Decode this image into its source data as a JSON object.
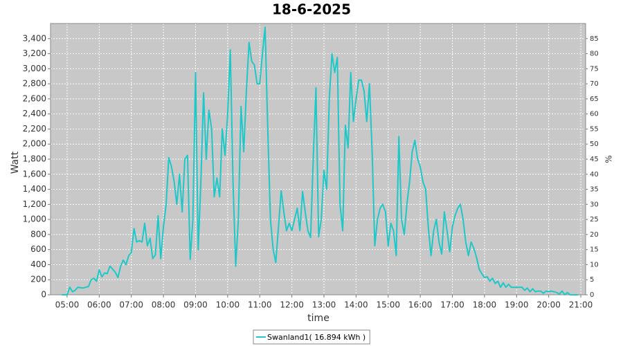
{
  "chart_data": {
    "type": "line",
    "title": "18-6-2025",
    "x_label": "time",
    "y_label": "Watt",
    "y2_label": "%",
    "x": [
      "04:50",
      "04:55",
      "05:00",
      "05:05",
      "05:10",
      "05:15",
      "05:20",
      "05:25",
      "05:30",
      "05:35",
      "05:40",
      "05:45",
      "05:50",
      "05:55",
      "06:00",
      "06:05",
      "06:10",
      "06:15",
      "06:20",
      "06:25",
      "06:30",
      "06:35",
      "06:40",
      "06:45",
      "06:50",
      "06:55",
      "07:00",
      "07:05",
      "07:10",
      "07:15",
      "07:20",
      "07:25",
      "07:30",
      "07:35",
      "07:40",
      "07:45",
      "07:50",
      "07:55",
      "08:00",
      "08:05",
      "08:10",
      "08:15",
      "08:20",
      "08:25",
      "08:30",
      "08:35",
      "08:40",
      "08:45",
      "08:50",
      "08:55",
      "09:00",
      "09:05",
      "09:10",
      "09:15",
      "09:20",
      "09:25",
      "09:30",
      "09:35",
      "09:40",
      "09:45",
      "09:50",
      "09:55",
      "10:00",
      "10:05",
      "10:10",
      "10:15",
      "10:20",
      "10:25",
      "10:30",
      "10:35",
      "10:40",
      "10:45",
      "10:50",
      "10:55",
      "11:00",
      "11:05",
      "11:10",
      "11:15",
      "11:20",
      "11:25",
      "11:30",
      "11:35",
      "11:40",
      "11:45",
      "11:50",
      "11:55",
      "12:00",
      "12:05",
      "12:10",
      "12:15",
      "12:20",
      "12:25",
      "12:30",
      "12:35",
      "12:40",
      "12:45",
      "12:50",
      "12:55",
      "13:00",
      "13:05",
      "13:10",
      "13:15",
      "13:20",
      "13:25",
      "13:30",
      "13:35",
      "13:40",
      "13:45",
      "13:50",
      "13:55",
      "14:00",
      "14:05",
      "14:10",
      "14:15",
      "14:20",
      "14:25",
      "14:30",
      "14:35",
      "14:40",
      "14:45",
      "14:50",
      "14:55",
      "15:00",
      "15:05",
      "15:10",
      "15:15",
      "15:20",
      "15:25",
      "15:30",
      "15:35",
      "15:40",
      "15:45",
      "15:50",
      "15:55",
      "16:00",
      "16:05",
      "16:10",
      "16:15",
      "16:20",
      "16:25",
      "16:30",
      "16:35",
      "16:40",
      "16:45",
      "16:50",
      "16:55",
      "17:00",
      "17:05",
      "17:10",
      "17:15",
      "17:20",
      "17:25",
      "17:30",
      "17:35",
      "17:40",
      "17:45",
      "17:50",
      "17:55",
      "18:00",
      "18:05",
      "18:10",
      "18:15",
      "18:20",
      "18:25",
      "18:30",
      "18:35",
      "18:40",
      "18:45",
      "18:50",
      "18:55",
      "19:00",
      "19:05",
      "19:10",
      "19:15",
      "19:20",
      "19:25",
      "19:30",
      "19:35",
      "19:40",
      "19:45",
      "19:50",
      "19:55",
      "20:00",
      "20:05",
      "20:10",
      "20:15",
      "20:20",
      "20:25",
      "20:30",
      "20:35",
      "20:40",
      "20:45",
      "20:50",
      "20:55"
    ],
    "series": [
      {
        "name": "Swanland1( 16.894 kWh )",
        "color": "#1ec8c8",
        "values": [
          0,
          0,
          0,
          100,
          40,
          60,
          100,
          95,
          90,
          100,
          110,
          200,
          220,
          180,
          330,
          240,
          290,
          280,
          380,
          340,
          300,
          230,
          380,
          460,
          400,
          520,
          560,
          880,
          700,
          720,
          700,
          950,
          650,
          750,
          480,
          530,
          1050,
          480,
          900,
          1200,
          1820,
          1700,
          1500,
          1200,
          1600,
          1100,
          1800,
          1850,
          470,
          1000,
          2950,
          600,
          1500,
          2680,
          1800,
          2450,
          2200,
          1300,
          1550,
          1300,
          2200,
          1850,
          2400,
          3250,
          1500,
          380,
          1000,
          2500,
          1900,
          2700,
          3350,
          3100,
          3050,
          2800,
          2800,
          3200,
          3550,
          2200,
          1000,
          600,
          430,
          900,
          1380,
          1100,
          850,
          950,
          850,
          1000,
          1150,
          850,
          1370,
          1100,
          850,
          760,
          1800,
          2750,
          770,
          1000,
          1650,
          1400,
          2600,
          3200,
          2950,
          3150,
          1200,
          850,
          2250,
          1950,
          2950,
          2300,
          2600,
          2850,
          2850,
          2700,
          2300,
          2800,
          1900,
          650,
          1000,
          1150,
          1200,
          1100,
          650,
          950,
          850,
          520,
          2100,
          1000,
          800,
          1200,
          1500,
          1900,
          2050,
          1800,
          1700,
          1500,
          1400,
          900,
          520,
          850,
          1000,
          700,
          540,
          1100,
          850,
          570,
          900,
          1050,
          1150,
          1200,
          1000,
          700,
          520,
          700,
          620,
          500,
          340,
          280,
          230,
          240,
          180,
          220,
          150,
          180,
          100,
          160,
          100,
          140,
          100,
          100,
          100,
          100,
          100,
          60,
          90,
          40,
          80,
          40,
          50,
          50,
          20,
          50,
          40,
          50,
          40,
          30,
          10,
          50,
          0,
          30,
          0,
          0,
          0,
          0
        ]
      }
    ],
    "xlim": [
      "04:29",
      "21:09"
    ],
    "xticks": [
      "05:00",
      "06:00",
      "07:00",
      "08:00",
      "09:00",
      "10:00",
      "11:00",
      "12:00",
      "13:00",
      "14:00",
      "15:00",
      "16:00",
      "17:00",
      "18:00",
      "19:00",
      "20:00",
      "21:00"
    ],
    "ylim": [
      0,
      3600
    ],
    "yticks": [
      0,
      200,
      400,
      600,
      800,
      {
        "value": 1000,
        "label": "1,000"
      },
      {
        "value": 1200,
        "label": "1,200"
      },
      {
        "value": 1400,
        "label": "1,400"
      },
      {
        "value": 1600,
        "label": "1,600"
      },
      {
        "value": 1800,
        "label": "1,800"
      },
      {
        "value": 2000,
        "label": "2,000"
      },
      {
        "value": 2200,
        "label": "2,200"
      },
      {
        "value": 2400,
        "label": "2,400"
      },
      {
        "value": 2600,
        "label": "2,600"
      },
      {
        "value": 2800,
        "label": "2,800"
      },
      {
        "value": 3000,
        "label": "3,000"
      },
      {
        "value": 3200,
        "label": "3,200"
      },
      {
        "value": 3400,
        "label": "3,400"
      }
    ],
    "y2lim": [
      0,
      90
    ],
    "y2ticks": [
      0,
      5,
      10,
      15,
      20,
      25,
      30,
      35,
      40,
      45,
      50,
      55,
      60,
      65,
      70,
      75,
      80,
      85
    ],
    "grid": true,
    "legend": "bottom",
    "plot_background": "#c8c8c8"
  }
}
